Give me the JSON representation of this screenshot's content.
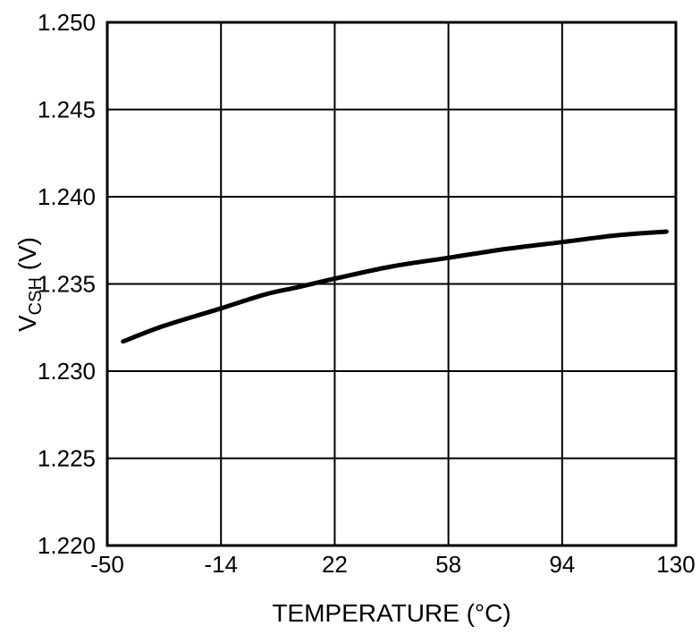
{
  "chart_data": {
    "type": "line",
    "xlabel": "TEMPERATURE (°C)",
    "ylabel": {
      "pre": "V",
      "sub": "CSH",
      "post": " (V)"
    },
    "xlim": [
      -50,
      130
    ],
    "ylim": [
      1.22,
      1.25
    ],
    "xticks": [
      -50,
      -14,
      22,
      58,
      94,
      130
    ],
    "xtick_labels": [
      "-50",
      "-14",
      "22",
      "58",
      "94",
      "130"
    ],
    "yticks": [
      1.22,
      1.225,
      1.23,
      1.235,
      1.24,
      1.245,
      1.25
    ],
    "ytick_labels": [
      "1.220",
      "1.225",
      "1.230",
      "1.235",
      "1.240",
      "1.245",
      "1.250"
    ],
    "grid": true,
    "legend": "none",
    "series": [
      {
        "name": "VCSH",
        "x": [
          -45,
          -32,
          -14,
          0,
          10,
          22,
          40,
          58,
          76,
          94,
          112,
          127
        ],
        "y": [
          1.2317,
          1.2326,
          1.2336,
          1.2344,
          1.2348,
          1.2353,
          1.236,
          1.2365,
          1.237,
          1.2374,
          1.2378,
          1.238
        ]
      }
    ],
    "colors": {
      "line": "#000000",
      "grid": "#000000",
      "frame": "#000000",
      "background": "#ffffff",
      "text": "#000000"
    },
    "line_width": 5
  }
}
